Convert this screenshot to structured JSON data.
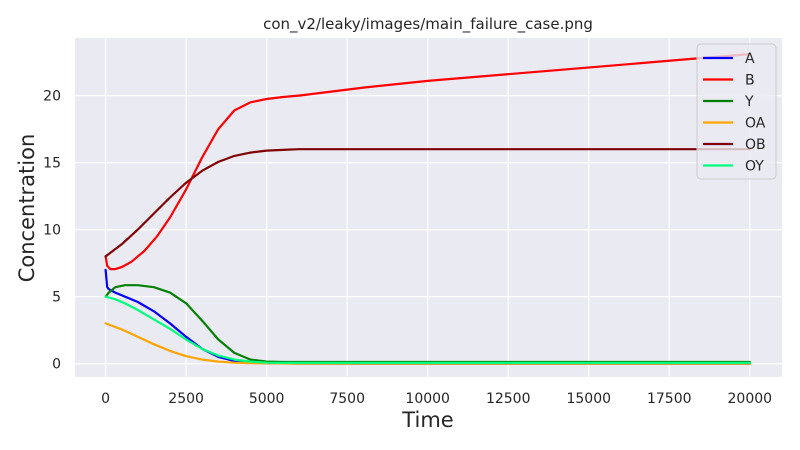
{
  "chart_data": {
    "type": "line",
    "title": "con_v2/leaky/images/main_failure_case.png",
    "xlabel": "Time",
    "ylabel": "Concentration",
    "xlim": [
      -950,
      21000
    ],
    "ylim": [
      -1.0,
      24.3
    ],
    "xticks": [
      0,
      2500,
      5000,
      7500,
      10000,
      12500,
      15000,
      17500,
      20000
    ],
    "yticks": [
      0,
      5,
      10,
      15,
      20
    ],
    "grid": true,
    "legend_position": "top-right",
    "colors": {
      "background": "#eaeaf2",
      "grid": "#ffffff",
      "text": "#262626"
    },
    "series": [
      {
        "name": "A",
        "color": "#0000ff",
        "x": [
          0,
          50,
          100,
          300,
          600,
          1000,
          1500,
          2000,
          2500,
          3000,
          3500,
          4000,
          4500,
          5000,
          6000,
          8000,
          12000,
          16000,
          20000
        ],
        "y": [
          7.0,
          5.7,
          5.55,
          5.3,
          5.0,
          4.6,
          3.9,
          3.0,
          2.0,
          1.1,
          0.5,
          0.2,
          0.07,
          0.03,
          0.01,
          0.0,
          0.0,
          0.0,
          0.0
        ]
      },
      {
        "name": "B",
        "color": "#ff0000",
        "x": [
          0,
          50,
          150,
          300,
          500,
          800,
          1200,
          1600,
          2000,
          2500,
          3000,
          3500,
          4000,
          4500,
          5000,
          5500,
          6000,
          7000,
          8000,
          10000,
          12000,
          14000,
          16000,
          18000,
          20000
        ],
        "y": [
          8.0,
          7.3,
          7.05,
          7.05,
          7.2,
          7.6,
          8.4,
          9.5,
          10.9,
          13.0,
          15.4,
          17.5,
          18.9,
          19.5,
          19.75,
          19.9,
          20.0,
          20.3,
          20.6,
          21.1,
          21.5,
          21.9,
          22.3,
          22.7,
          23.1
        ]
      },
      {
        "name": "Y",
        "color": "#008000",
        "x": [
          0,
          100,
          300,
          600,
          1000,
          1500,
          2000,
          2500,
          3000,
          3500,
          4000,
          4500,
          5000,
          5500,
          6000,
          8000,
          12000,
          16000,
          20000
        ],
        "y": [
          5.0,
          5.3,
          5.7,
          5.85,
          5.85,
          5.7,
          5.3,
          4.5,
          3.2,
          1.8,
          0.8,
          0.3,
          0.15,
          0.12,
          0.12,
          0.12,
          0.12,
          0.12,
          0.12
        ]
      },
      {
        "name": "OA",
        "color": "#ffa500",
        "x": [
          0,
          500,
          1000,
          1500,
          2000,
          2500,
          3000,
          3500,
          4000,
          4500,
          5000,
          6000,
          8000,
          12000,
          16000,
          20000
        ],
        "y": [
          3.0,
          2.55,
          2.0,
          1.45,
          0.95,
          0.55,
          0.3,
          0.15,
          0.07,
          0.03,
          0.02,
          0.0,
          0.0,
          0.0,
          0.0,
          0.0
        ]
      },
      {
        "name": "OB",
        "color": "#800000",
        "x": [
          0,
          500,
          1000,
          1500,
          2000,
          2500,
          3000,
          3500,
          4000,
          4500,
          5000,
          5500,
          6000,
          7000,
          8000,
          12000,
          16000,
          20000
        ],
        "y": [
          8.0,
          8.9,
          10.0,
          11.2,
          12.4,
          13.5,
          14.4,
          15.05,
          15.5,
          15.75,
          15.9,
          15.95,
          16.0,
          16.0,
          16.0,
          16.0,
          16.0,
          16.0
        ]
      },
      {
        "name": "OY",
        "color": "#00ff7f",
        "x": [
          0,
          300,
          600,
          1000,
          1500,
          2000,
          2500,
          3000,
          3500,
          4000,
          4500,
          5000,
          5500,
          6000,
          8000,
          12000,
          16000,
          20000
        ],
        "y": [
          5.0,
          4.8,
          4.5,
          4.0,
          3.3,
          2.6,
          1.8,
          1.1,
          0.6,
          0.3,
          0.15,
          0.07,
          0.05,
          0.05,
          0.05,
          0.05,
          0.05,
          0.05
        ]
      }
    ]
  }
}
